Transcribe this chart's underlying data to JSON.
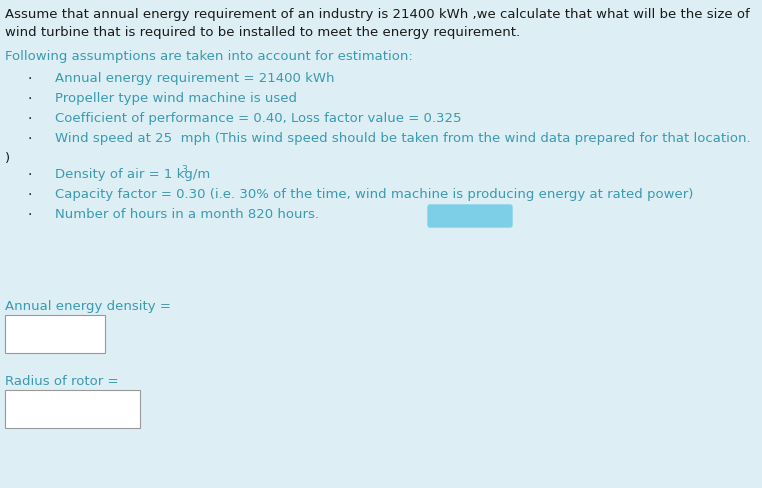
{
  "bg_color": "#ddeef4",
  "text_color": "#3a9ab0",
  "dark_text_color": "#1a1a1a",
  "title_line1": "Assume that annual energy requirement of an industry is 21400 kWh ,we calculate that what will be the size of",
  "title_line2": "wind turbine that is required to be installed to meet the energy requirement.",
  "section_header": "Following assumptions are taken into account for estimation:",
  "bullet_items": [
    "Annual energy requirement = 21400 kWh",
    "Propeller type wind machine is used",
    "Coefficient of performance = 0.40, Loss factor value = 0.325",
    "Wind speed at 25  mph (This wind speed should be taken from the wind data prepared for that location.",
    "Density of air = 1 kg/m",
    "Capacity factor = 0.30 (i.e. 30% of the time, wind machine is producing energy at rated power)",
    "Number of hours in a month 820 hours."
  ],
  "closing_paren": ")",
  "label1": "Annual energy density =",
  "label2": "Radius of rotor =",
  "blob_color": "#7dcfe8",
  "font_size": 9.5
}
